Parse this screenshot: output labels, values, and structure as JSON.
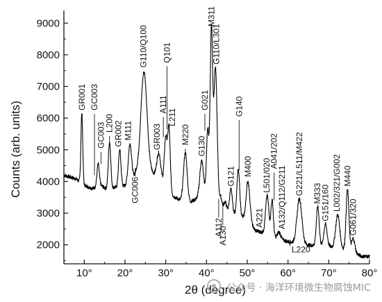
{
  "chart_data": {
    "type": "line",
    "xlabel": "2θ (degree)",
    "ylabel": "Counts (arb. units)",
    "xlim": [
      5,
      80
    ],
    "ylim": [
      1400,
      9400
    ],
    "xticks": [
      10,
      20,
      30,
      40,
      50,
      60,
      70,
      80
    ],
    "xtick_labels": [
      "10°",
      "20°",
      "30°",
      "40°",
      "50°",
      "60°",
      "70°",
      "80°"
    ],
    "yticks": [
      2000,
      3000,
      4000,
      5000,
      6000,
      7000,
      8000,
      9000
    ],
    "ytick_labels": [
      "2000",
      "3000",
      "4000",
      "5000",
      "6000",
      "7000",
      "8000",
      "9000"
    ],
    "grid": false,
    "baseline": [
      [
        5,
        4200
      ],
      [
        8,
        4080
      ],
      [
        10,
        3880
      ],
      [
        12,
        3780
      ],
      [
        14,
        3880
      ],
      [
        16,
        3720
      ],
      [
        17,
        3800
      ],
      [
        20,
        3860
      ],
      [
        22,
        4120
      ],
      [
        23,
        4420
      ],
      [
        24,
        4820
      ],
      [
        26,
        4420
      ],
      [
        28,
        4050
      ],
      [
        30,
        3800
      ],
      [
        32,
        3520
      ],
      [
        34,
        3380
      ],
      [
        36,
        3350
      ],
      [
        38,
        3480
      ],
      [
        40,
        3620
      ],
      [
        42,
        3500
      ],
      [
        44,
        3200
      ],
      [
        46,
        2980
      ],
      [
        48,
        2900
      ],
      [
        50,
        2800
      ],
      [
        52,
        2450
      ],
      [
        54,
        2380
      ],
      [
        56,
        2250
      ],
      [
        58,
        2180
      ],
      [
        60,
        2100
      ],
      [
        62,
        2050
      ],
      [
        64,
        2000
      ],
      [
        66,
        1980
      ],
      [
        68,
        1960
      ],
      [
        70,
        1950
      ],
      [
        72,
        1900
      ],
      [
        74,
        1840
      ],
      [
        76,
        1760
      ],
      [
        78,
        1640
      ],
      [
        80,
        1630
      ]
    ],
    "peaks": [
      [
        9.4,
        6150,
        0.22
      ],
      [
        13.4,
        4550,
        0.28
      ],
      [
        16.2,
        5250,
        0.3
      ],
      [
        18.7,
        5000,
        0.3
      ],
      [
        21.2,
        5200,
        0.4
      ],
      [
        24.7,
        7450,
        0.7
      ],
      [
        28.3,
        4900,
        0.5
      ],
      [
        30.0,
        5400,
        0.35
      ],
      [
        30.8,
        5650,
        0.3
      ],
      [
        34.8,
        4900,
        0.45
      ],
      [
        38.8,
        4650,
        0.45
      ],
      [
        40.3,
        5600,
        0.3
      ],
      [
        41.2,
        8800,
        0.3
      ],
      [
        42.2,
        7600,
        0.4
      ],
      [
        43.5,
        3500,
        0.3
      ],
      [
        44.6,
        3350,
        0.3
      ],
      [
        46.0,
        3750,
        0.35
      ],
      [
        47.8,
        4350,
        0.35
      ],
      [
        50.2,
        4000,
        0.45
      ],
      [
        54.9,
        3550,
        0.4
      ],
      [
        56.1,
        3400,
        0.3
      ],
      [
        57.8,
        2400,
        0.4
      ],
      [
        62.8,
        3450,
        0.6
      ],
      [
        67.3,
        3200,
        0.35
      ],
      [
        69.2,
        2650,
        0.4
      ],
      [
        72.2,
        2950,
        0.5
      ],
      [
        74.6,
        3750,
        0.35
      ],
      [
        76.0,
        2200,
        0.4
      ]
    ],
    "annotations": [
      {
        "text": "GR001",
        "x": 9.4,
        "y": 6200,
        "tip_y": 6150
      },
      {
        "text": "GC003",
        "x": 12.5,
        "y": 6200,
        "tip_y": 4200
      },
      {
        "text": "GC003",
        "x": 14.1,
        "y": 5000,
        "tip_y": 4550
      },
      {
        "text": "L200",
        "x": 16.2,
        "y": 5500,
        "tip_y": 5250
      },
      {
        "text": "GR002",
        "x": 18.4,
        "y": 5050,
        "tip_y": 5000
      },
      {
        "text": "M111",
        "x": 20.8,
        "y": 5250,
        "tip_y": 5200
      },
      {
        "text": "G110/Q100",
        "x": 24.5,
        "y": 7550,
        "tip_y": 7450
      },
      {
        "text": "GR003",
        "x": 27.8,
        "y": 4950,
        "tip_y": 4900
      },
      {
        "text": "A111",
        "x": 29.4,
        "y": 6100,
        "tip_y": 5400
      },
      {
        "text": "Q101",
        "x": 30.3,
        "y": 7700,
        "tip_y": 5650
      },
      {
        "text": "L211",
        "x": 31.6,
        "y": 5700,
        "tip_y": 5650
      },
      {
        "text": "M220",
        "x": 34.8,
        "y": 5100,
        "tip_y": 4900
      },
      {
        "text": "G130",
        "x": 38.8,
        "y": 4750,
        "tip_y": 4650
      },
      {
        "text": "G021",
        "x": 39.6,
        "y": 6200,
        "tip_y": 5600
      },
      {
        "text": "M311",
        "x": 41.2,
        "y": 8850,
        "tip_y": 8800
      },
      {
        "text": "G110/L301",
        "x": 42.4,
        "y": 7650,
        "tip_y": 7600
      },
      {
        "text": "G121",
        "x": 46.0,
        "y": 3800,
        "tip_y": 3750
      },
      {
        "text": "G140",
        "x": 48.0,
        "y": 6000,
        "tip_y": 4350
      },
      {
        "text": "M400",
        "x": 50.2,
        "y": 4100,
        "tip_y": 4000
      },
      {
        "text": "L501/020",
        "x": 54.8,
        "y": 3600,
        "tip_y": 3550
      },
      {
        "text": "A041/202",
        "x": 56.6,
        "y": 4350,
        "tip_y": 3400
      },
      {
        "text": "G221/L511/M422",
        "x": 62.8,
        "y": 3500,
        "tip_y": 3450
      },
      {
        "text": "M333",
        "x": 67.2,
        "y": 3250,
        "tip_y": 3200
      },
      {
        "text": "G151/160",
        "x": 69.2,
        "y": 2700,
        "tip_y": 2650
      },
      {
        "text": "L002/321/G002",
        "x": 72.0,
        "y": 3000,
        "tip_y": 2950
      },
      {
        "text": "M440",
        "x": 74.6,
        "y": 3800,
        "tip_y": 3750
      },
      {
        "text": "G061/320",
        "x": 76.0,
        "y": 2250,
        "tip_y": 2200
      },
      {
        "text": "GC006",
        "x": 22.5,
        "y": 4100,
        "tip_y": 4420,
        "rot": -90,
        "anchor": "end"
      },
      {
        "text": "A112",
        "x": 43.0,
        "y": 2800,
        "tip_y": 3450,
        "rot": -90,
        "anchor": "end"
      },
      {
        "text": "A130",
        "x": 44.0,
        "y": 2550,
        "tip_y": 3300,
        "rot": -90,
        "anchor": "end"
      },
      {
        "text": "A221",
        "x": 53.0,
        "y": 2500,
        "tip_y": 2500
      },
      {
        "text": "A132/Q112/G211",
        "x": 58.5,
        "y": 2450,
        "tip_y": 2400
      },
      {
        "text": "L220",
        "x": 60.2,
        "y": 1850,
        "tip_y": 2150,
        "rot": 0,
        "anchor": "start"
      }
    ]
  },
  "watermark": {
    "text": "公众号 · 海洋环境微生物腐蚀MIC",
    "icon": "wechat-icon"
  }
}
